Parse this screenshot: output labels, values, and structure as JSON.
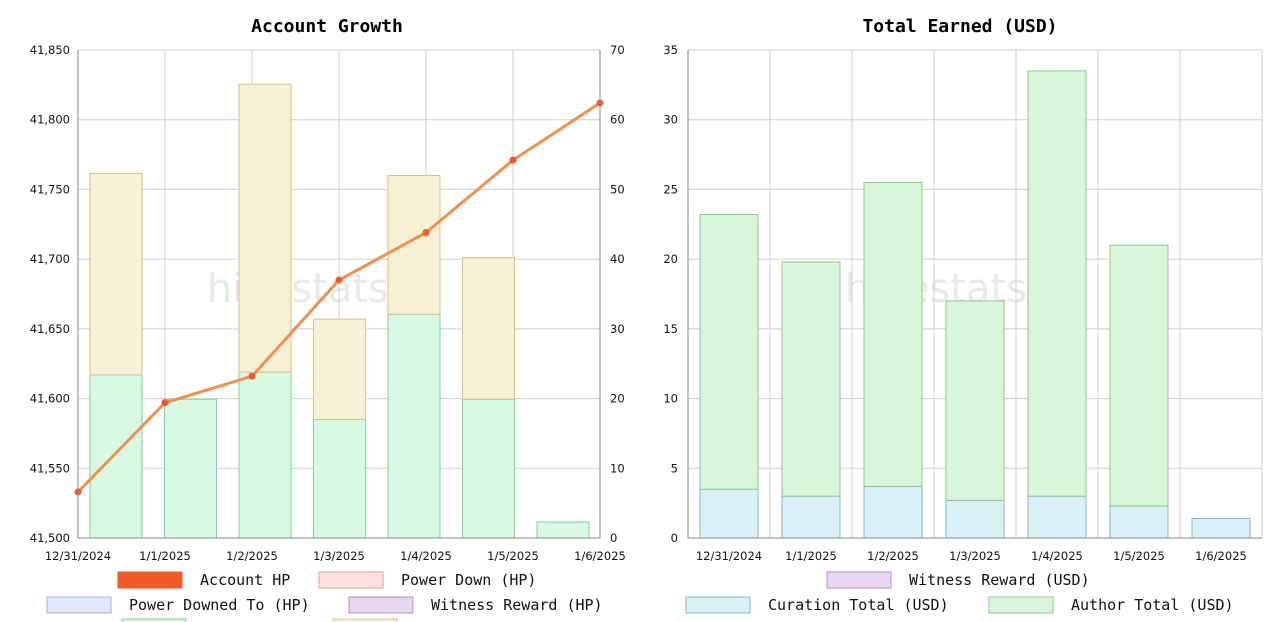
{
  "watermark": "hivestats.io",
  "chart_data": [
    {
      "type": "bar",
      "title": "Account Growth",
      "categories": [
        "12/31/2024",
        "1/1/2025",
        "1/2/2025",
        "1/3/2025",
        "1/4/2025",
        "1/5/2025",
        "1/6/2025"
      ],
      "y_left": {
        "ylim": [
          41500,
          41850
        ],
        "ticks": [
          "41,500",
          "41,550",
          "41,600",
          "41,650",
          "41,700",
          "41,750",
          "41,800",
          "41,850"
        ]
      },
      "y_right": {
        "ylim": [
          0,
          70
        ],
        "ticks": [
          "0",
          "10",
          "20",
          "30",
          "40",
          "50",
          "60",
          "70"
        ]
      },
      "series": [
        {
          "name": "Account HP",
          "kind": "line",
          "axis": "left",
          "color": "#f05a28",
          "line_color": "#f0904f",
          "values": [
            41533,
            41597,
            41616,
            41685,
            41719,
            41771,
            41812
          ]
        },
        {
          "name": "Power Down (HP)",
          "kind": "bar",
          "axis": "right",
          "color": "#fde0de",
          "border": "#e99a9a",
          "values": [
            0,
            0,
            0,
            0,
            0,
            0,
            0
          ]
        },
        {
          "name": "Power Downed To (HP)",
          "kind": "bar",
          "axis": "right",
          "color": "#dfe8ff",
          "border": "#9fb5ea",
          "values": [
            0,
            0,
            0,
            0,
            0,
            0,
            0
          ]
        },
        {
          "name": "Witness Reward (HP)",
          "kind": "bar",
          "axis": "right",
          "color": "#e6d6f0",
          "border": "#b48fcf",
          "values": [
            0,
            0,
            0,
            0,
            0,
            0,
            0
          ]
        },
        {
          "name": "",
          "kind": "bar",
          "axis": "right",
          "stack": true,
          "color": "#d8fae3",
          "border": "#7fd09a",
          "values": [
            23.4,
            19.9,
            23.8,
            17.0,
            32.1,
            19.9,
            2.3
          ]
        },
        {
          "name": "",
          "kind": "bar",
          "axis": "right",
          "stack": true,
          "color": "#f6f1d5",
          "border": "#d4c486",
          "values": [
            28.9,
            0,
            41.3,
            14.4,
            19.9,
            20.3,
            0
          ]
        }
      ],
      "legend": [
        "Account HP",
        "Power Down (HP)",
        "Power Downed To (HP)",
        "Witness Reward (HP)"
      ],
      "legend_placement": "bottom",
      "grid": true
    },
    {
      "type": "bar",
      "title": "Total Earned (USD)",
      "categories": [
        "12/31/2024",
        "1/1/2025",
        "1/2/2025",
        "1/3/2025",
        "1/4/2025",
        "1/5/2025",
        "1/6/2025"
      ],
      "ylim": [
        0,
        35
      ],
      "ticks": [
        "0",
        "5",
        "10",
        "15",
        "20",
        "25",
        "30",
        "35"
      ],
      "series": [
        {
          "name": "Witness Reward (USD)",
          "color": "#e6d6f0",
          "border": "#b48fcf",
          "values": [
            0,
            0,
            0,
            0,
            0,
            0,
            0
          ]
        },
        {
          "name": "Curation Total (USD)",
          "color": "#d9f0f7",
          "border": "#7fb8d0",
          "values": [
            3.5,
            3.0,
            3.7,
            2.7,
            3.0,
            2.3,
            1.4
          ]
        },
        {
          "name": "Author Total (USD)",
          "color": "#d9f5da",
          "border": "#86c98a",
          "values": [
            19.7,
            16.8,
            21.8,
            14.3,
            30.5,
            18.7,
            0
          ]
        }
      ],
      "legend": [
        "Witness Reward (USD)",
        "Curation Total (USD)",
        "Author Total (USD)"
      ],
      "legend_placement": "bottom",
      "grid": true
    }
  ]
}
